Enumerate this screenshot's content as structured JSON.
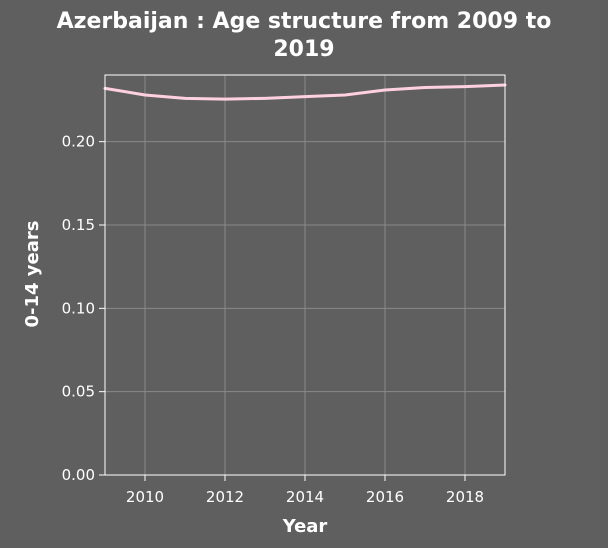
{
  "chart_data": {
    "type": "line",
    "title_lines": [
      "Azerbaijan : Age structure from 2009 to",
      "2019"
    ],
    "xlabel": "Year",
    "ylabel": "0-14 years",
    "x": [
      2009,
      2010,
      2011,
      2012,
      2013,
      2014,
      2015,
      2016,
      2017,
      2018,
      2019
    ],
    "series": [
      {
        "values": [
          0.232,
          0.228,
          0.226,
          0.2255,
          0.226,
          0.227,
          0.228,
          0.231,
          0.2325,
          0.233,
          0.234
        ]
      }
    ],
    "xlim": [
      2009,
      2019
    ],
    "ylim": [
      0,
      0.24
    ],
    "xticks": [
      2010,
      2012,
      2014,
      2016,
      2018
    ],
    "xtick_labels": [
      "2010",
      "2012",
      "2014",
      "2016",
      "2018"
    ],
    "yticks": [
      0,
      0.05,
      0.1,
      0.15,
      0.2
    ],
    "ytick_labels": [
      "0.00",
      "0.05",
      "0.10",
      "0.15",
      "0.20"
    ],
    "grid": true,
    "colors": {
      "background": "#5f5f5f",
      "line": "#ffd1e0",
      "grid": "#8a8a8a",
      "axis": "#ffffff",
      "text": "#ffffff"
    }
  }
}
